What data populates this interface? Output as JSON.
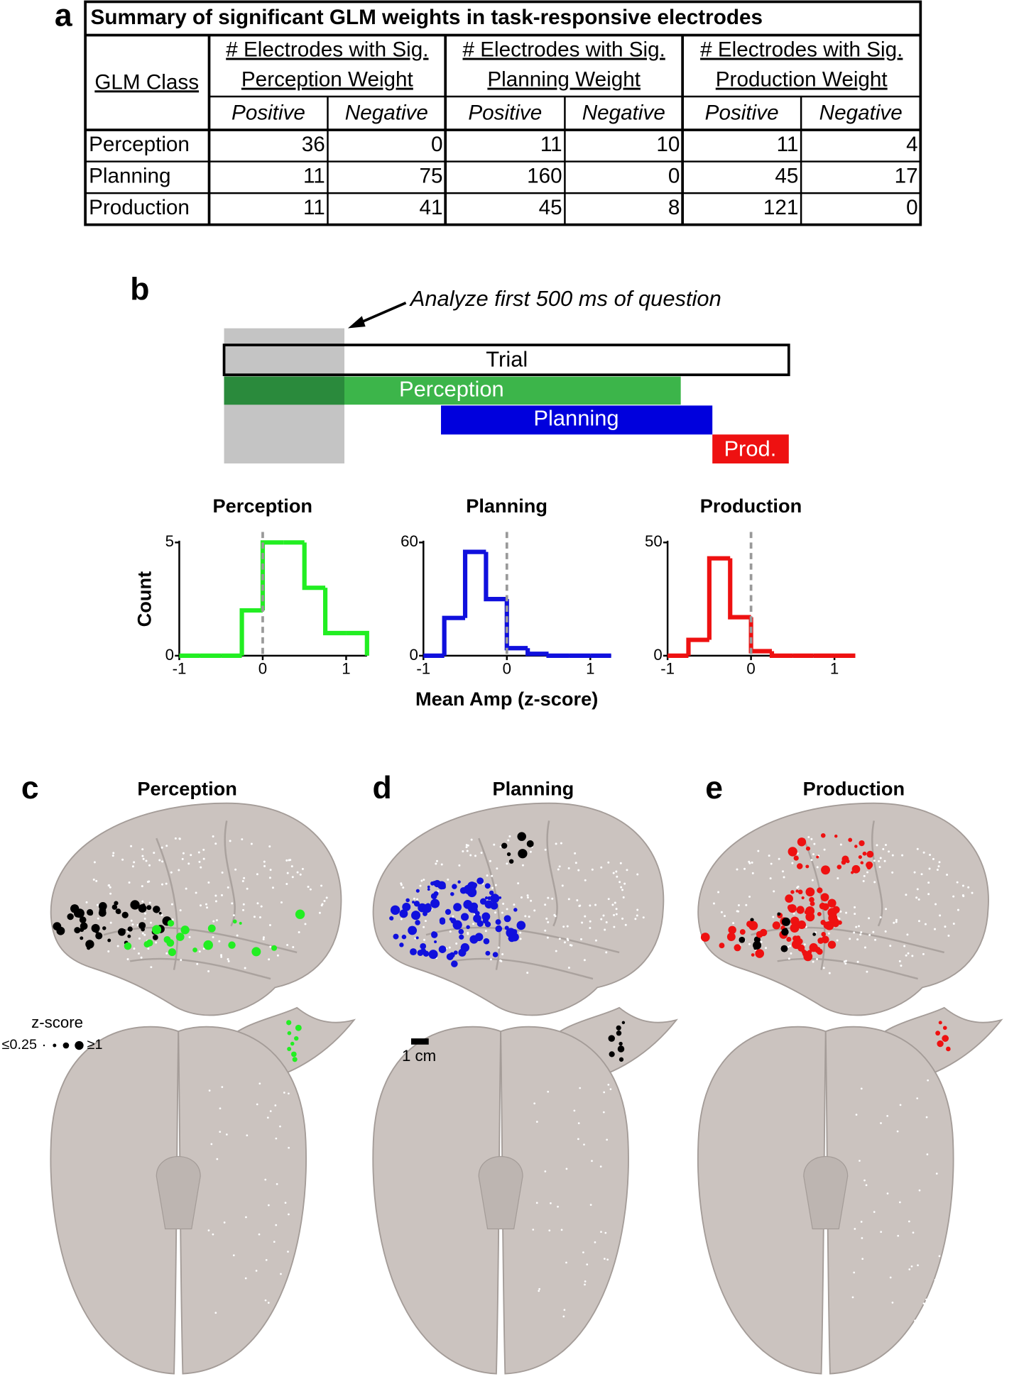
{
  "panel_labels": [
    "a",
    "b",
    "c",
    "d",
    "e"
  ],
  "table": {
    "title": "Summary of significant GLM weights in task-responsive electrodes",
    "row_header": "GLM Class",
    "groups": [
      {
        "line1": "# Electrodes with Sig.",
        "line2": "Perception Weight"
      },
      {
        "line1": "# Electrodes with Sig.",
        "line2": "Planning Weight"
      },
      {
        "line1": "# Electrodes with Sig.",
        "line2": "Production Weight"
      }
    ],
    "subheaders": [
      "Positive",
      "Negative"
    ],
    "rows": [
      [
        "Perception",
        36,
        0,
        11,
        10,
        11,
        4
      ],
      [
        "Planning",
        11,
        75,
        160,
        0,
        45,
        17
      ],
      [
        "Production",
        11,
        41,
        45,
        8,
        121,
        0
      ]
    ]
  },
  "timeline": {
    "annotation": "Analyze first 500 ms of question",
    "bars": [
      "Trial",
      "Perception",
      "Planning",
      "Prod."
    ]
  },
  "chart_data": [
    {
      "type": "histogram",
      "title": "Perception",
      "y_label": "Count",
      "color": "#22ee22",
      "bins": [
        -1,
        -0.75,
        -0.5,
        -0.25,
        0,
        0.25,
        0.5,
        0.75,
        1,
        1.25
      ],
      "counts": [
        0,
        0,
        0,
        2,
        5,
        5,
        3,
        1,
        1
      ],
      "xlim": [
        -1,
        1.25
      ],
      "ylim": [
        0,
        5
      ],
      "xticks": [
        -1,
        0,
        1
      ],
      "yticks": [
        0,
        5
      ],
      "reference_line": 0
    },
    {
      "type": "histogram",
      "title": "Planning",
      "x_label": "Mean Amp (z-score)",
      "color": "#1010dd",
      "bins": [
        -1,
        -0.75,
        -0.5,
        -0.25,
        0,
        0.25,
        0.5,
        0.75,
        1,
        1.25
      ],
      "counts": [
        0,
        20,
        55,
        30,
        4,
        1,
        0,
        0,
        0
      ],
      "xlim": [
        -1,
        1.25
      ],
      "ylim": [
        0,
        60
      ],
      "xticks": [
        -1,
        0,
        1
      ],
      "yticks": [
        0,
        60
      ],
      "reference_line": 0
    },
    {
      "type": "histogram",
      "title": "Production",
      "color": "#ee1111",
      "bins": [
        -1,
        -0.75,
        -0.5,
        -0.25,
        0,
        0.25,
        0.5,
        0.75,
        1,
        1.25
      ],
      "counts": [
        0,
        7,
        43,
        17,
        2,
        0,
        0,
        0,
        0
      ],
      "xlim": [
        -1,
        1.25
      ],
      "ylim": [
        0,
        50
      ],
      "xticks": [
        -1,
        0,
        1
      ],
      "yticks": [
        0,
        50
      ],
      "reference_line": 0
    }
  ],
  "brains": {
    "titles": [
      "Perception",
      "Planning",
      "Production"
    ],
    "legend": {
      "title": "z-score",
      "min_label": "≤0.25",
      "max_label": "≥1"
    },
    "scale_bar": "1 cm"
  }
}
